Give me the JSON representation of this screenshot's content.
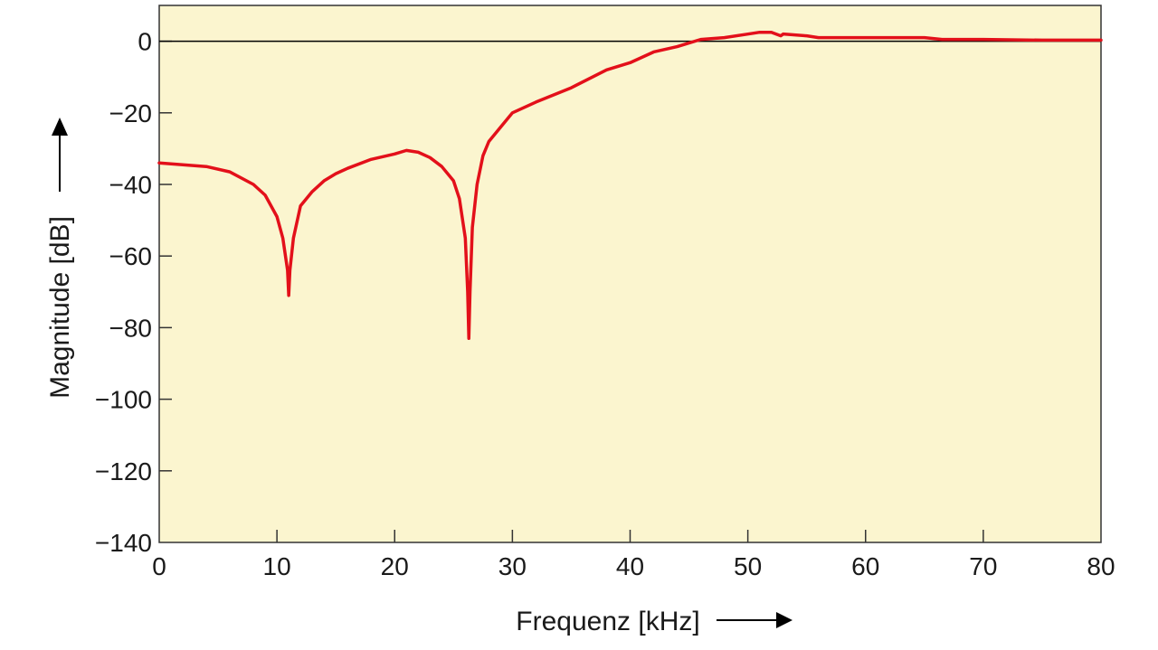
{
  "chart_data": {
    "type": "line",
    "title": "",
    "xlabel": "Frequenz [kHz]",
    "ylabel": "Magnitude [dB]",
    "xlim": [
      0,
      80
    ],
    "ylim": [
      -140,
      10
    ],
    "xticks": [
      0,
      10,
      20,
      30,
      40,
      50,
      60,
      70,
      80
    ],
    "yticks": [
      0,
      -20,
      -40,
      -60,
      -80,
      -100,
      -120,
      -140
    ],
    "xtick_labels": [
      "0",
      "10",
      "20",
      "30",
      "40",
      "50",
      "60",
      "70",
      "80"
    ],
    "ytick_labels": [
      "0",
      "−20",
      "−40",
      "−60",
      "−80",
      "−100",
      "−120",
      "−140"
    ],
    "grid": false,
    "reference_line_y": 0,
    "colors": {
      "plot_background": "#fbf5cf",
      "series": "#e3101a",
      "axes": "#333333"
    },
    "series": [
      {
        "x": [
          0,
          2,
          4,
          6,
          8,
          9,
          10,
          10.5,
          10.9,
          11,
          11.1,
          11.4,
          12,
          13,
          14,
          15,
          16,
          18,
          20,
          21,
          22,
          23,
          24,
          25,
          25.5,
          26,
          26.2,
          26.3,
          26.4,
          26.6,
          27,
          27.5,
          28,
          29,
          30,
          32,
          35,
          38,
          40,
          42,
          44,
          45,
          46,
          48,
          50,
          51,
          52,
          52.8,
          53,
          55,
          56,
          60,
          65,
          66.5,
          67,
          70,
          75,
          80
        ],
        "y": [
          -34,
          -34.5,
          -35,
          -36.5,
          -40,
          -43,
          -49,
          -55,
          -64,
          -71,
          -64,
          -55,
          -46,
          -42,
          -39,
          -37,
          -35.5,
          -33,
          -31.5,
          -30.5,
          -31,
          -32.5,
          -35,
          -39,
          -44,
          -55,
          -70,
          -83,
          -70,
          -52,
          -40,
          -32,
          -28,
          -24,
          -20,
          -17,
          -13,
          -8,
          -6,
          -3,
          -1.5,
          -0.5,
          0.5,
          1,
          2,
          2.5,
          2.5,
          1.5,
          2,
          1.5,
          1,
          1,
          1,
          0.5,
          0.5,
          0.5,
          0.3,
          0.3
        ]
      }
    ]
  }
}
